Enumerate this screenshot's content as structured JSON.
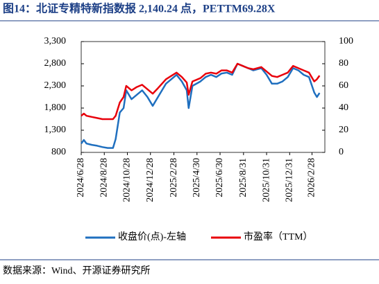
{
  "chart_data": {
    "type": "line",
    "title": "图14：北证专精特新指数报 2,140.24 点，PETTM69.28X",
    "source": "数据来源：Wind、开源证券研究所",
    "x": [
      "2024/6/28",
      "2024/7/5",
      "2024/7/12",
      "2024/7/26",
      "2024/8/9",
      "2024/8/23",
      "2024/9/6",
      "2024/9/20",
      "2024/9/27",
      "2024/10/8",
      "2024/10/18",
      "2024/10/25",
      "2024/11/8",
      "2024/11/22",
      "2024/12/6",
      "2024/12/20",
      "2025/1/3",
      "2025/1/17",
      "2025/2/7",
      "2025/2/21",
      "2025/3/7",
      "2025/3/21",
      "2025/4/3",
      "2025/4/8",
      "2025/4/18",
      "2025/5/9",
      "2025/5/23",
      "2025/6/6",
      "2025/6/20",
      "2025/7/4",
      "2025/7/18",
      "2025/8/1",
      "2025/8/15",
      "2025/8/29",
      "2025/9/12",
      "2025/9/26",
      "2025/10/17",
      "2025/10/31",
      "2025/11/14",
      "2025/11/28",
      "2025/12/12",
      "2025/12/26",
      "2026/1/9",
      "2026/1/23",
      "2026/2/6",
      "2026/2/20",
      "2026/3/6",
      "2026/3/13",
      "2026/3/20"
    ],
    "series": [
      {
        "name": "收盘价(点)-左轴",
        "color": "#1f6fbf",
        "axis": "y",
        "values": [
          1000,
          1080,
          1000,
          970,
          950,
          920,
          900,
          900,
          1100,
          1700,
          1800,
          2200,
          2000,
          2100,
          2200,
          2050,
          1850,
          2050,
          2350,
          2450,
          2550,
          2400,
          2200,
          1800,
          2300,
          2400,
          2500,
          2550,
          2500,
          2580,
          2600,
          2550,
          2800,
          2750,
          2700,
          2650,
          2700,
          2550,
          2350,
          2350,
          2400,
          2500,
          2700,
          2650,
          2550,
          2500,
          2150,
          2050,
          2140.24
        ]
      },
      {
        "name": "市盈率（TTM）",
        "color": "#e8000b",
        "axis": "y2",
        "values": [
          33,
          35,
          33,
          32,
          31,
          30,
          30,
          30,
          33,
          45,
          50,
          60,
          56,
          59,
          61,
          57,
          53,
          58,
          66,
          69,
          72,
          68,
          63,
          52,
          64,
          67,
          71,
          72,
          71,
          74,
          74,
          72,
          80,
          78,
          76,
          75,
          77,
          73,
          69,
          68,
          70,
          72,
          78,
          76,
          74,
          72,
          64,
          66,
          69.28
        ]
      }
    ],
    "xlim": [
      "2024/6/28",
      "2026/4/3"
    ],
    "xticks": [
      "2024/6/28",
      "2024/8/28",
      "2024/10/28",
      "2024/12/28",
      "2025/2/28",
      "2025/4/30",
      "2025/6/30",
      "2025/8/31",
      "2025/10/31",
      "2025/12/31",
      "2026/2/28"
    ],
    "ylim": [
      800,
      3300
    ],
    "yticks": [
      800,
      {
        "value": 1300,
        "label": "1,300"
      },
      {
        "value": 1800,
        "label": "1,800"
      },
      {
        "value": 2300,
        "label": "2,300"
      },
      {
        "value": 2800,
        "label": "2,800"
      },
      {
        "value": 3300,
        "label": "3,300"
      }
    ],
    "y2lim": [
      0,
      100
    ],
    "y2ticks": [
      0,
      20,
      40,
      60,
      80,
      100
    ]
  }
}
